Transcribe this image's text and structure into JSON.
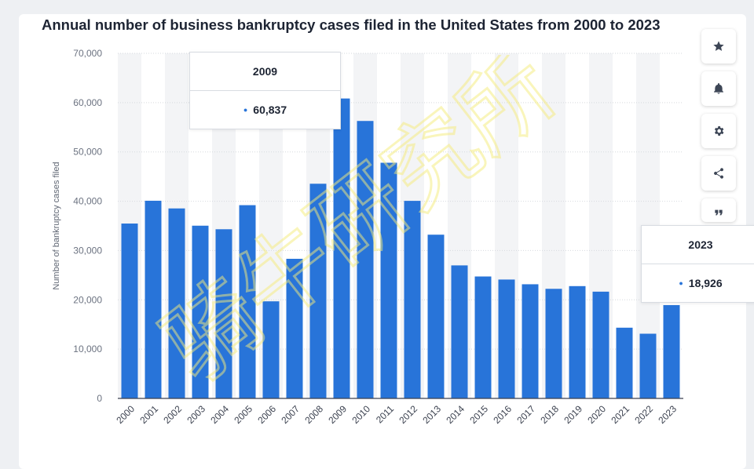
{
  "chart_data": {
    "type": "bar",
    "title": "Annual number of business bankruptcy cases filed in the United States from 2000 to 2023",
    "ylabel": "Number of bankruptcy cases filed",
    "xlabel": "",
    "ylim": [
      0,
      70000
    ],
    "yticks": [
      0,
      10000,
      20000,
      30000,
      40000,
      50000,
      60000,
      70000
    ],
    "ytick_labels": [
      "0",
      "10,000",
      "20,000",
      "30,000",
      "40,000",
      "50,000",
      "60,000",
      "70,000"
    ],
    "grid": true,
    "bar_color": "#2874d9",
    "band_color": "#f3f4f6",
    "categories": [
      "2000",
      "2001",
      "2002",
      "2003",
      "2004",
      "2005",
      "2006",
      "2007",
      "2008",
      "2009",
      "2010",
      "2011",
      "2012",
      "2013",
      "2014",
      "2015",
      "2016",
      "2017",
      "2018",
      "2019",
      "2020",
      "2021",
      "2022",
      "2023"
    ],
    "values": [
      35472,
      40099,
      38540,
      35037,
      34317,
      39201,
      19695,
      28322,
      43546,
      60837,
      56282,
      47806,
      40075,
      33212,
      26983,
      24735,
      24114,
      23157,
      22232,
      22780,
      21655,
      14347,
      13125,
      18926
    ]
  },
  "tooltips": [
    {
      "year": "2009",
      "value": "60,837"
    },
    {
      "year": "2023",
      "value": "18,926"
    }
  ],
  "toolbar": {
    "star_icon": "star-icon",
    "bell_icon": "bell-icon",
    "gear_icon": "gear-icon",
    "share_icon": "share-icon",
    "quote_icon": "quote-icon"
  },
  "watermark_text": "骑牛研究所",
  "watermark_color": "#f5ec7a"
}
